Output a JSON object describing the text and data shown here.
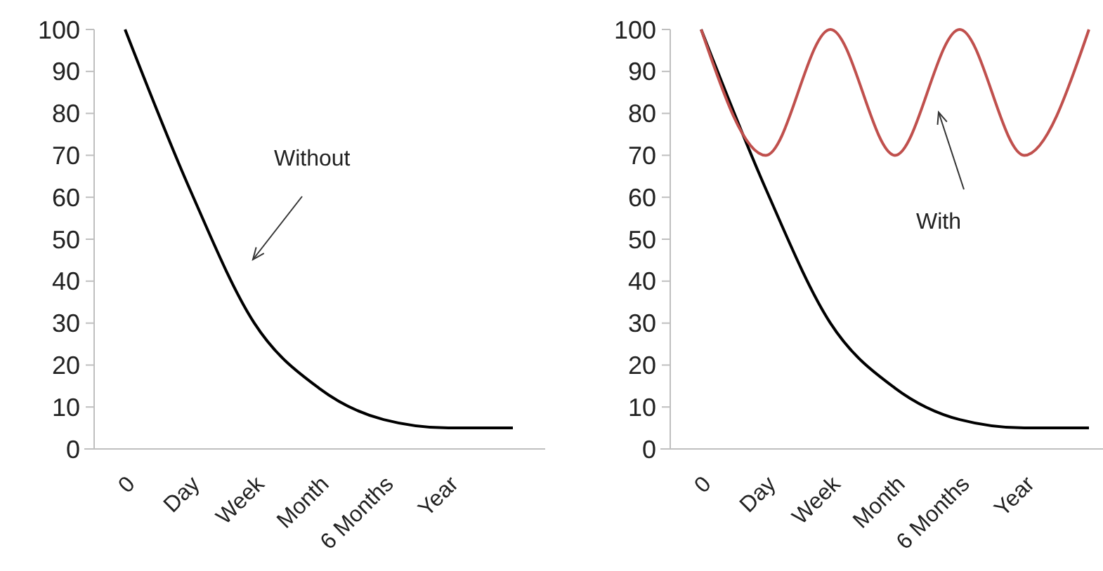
{
  "chart_data": [
    {
      "type": "line",
      "categories": [
        "0",
        "Day",
        "Week",
        "Month",
        "6 Months",
        "Year",
        null
      ],
      "ylim": [
        0,
        100
      ],
      "yticks": [
        0,
        10,
        20,
        30,
        40,
        50,
        60,
        70,
        80,
        90,
        100
      ],
      "grid": false,
      "marker": "none",
      "line_style": "solid",
      "annotations": [
        "Without"
      ],
      "series": [
        {
          "color": "#000000",
          "values": [
            100,
            62,
            30,
            14.5,
            7,
            5,
            5
          ]
        }
      ]
    },
    {
      "type": "line",
      "categories": [
        "0",
        "Day",
        "Week",
        "Month",
        "6 Months",
        "Year",
        null
      ],
      "ylim": [
        0,
        100
      ],
      "yticks": [
        0,
        10,
        20,
        30,
        40,
        50,
        60,
        70,
        80,
        90,
        100
      ],
      "grid": false,
      "marker": "none",
      "line_style": "solid",
      "annotations": [
        "With"
      ],
      "series": [
        {
          "color": "#000000",
          "values": [
            100,
            62,
            30,
            14.5,
            7,
            5,
            5
          ]
        },
        {
          "color": "#c0504d",
          "values": [
            100,
            70,
            100,
            70,
            100,
            70,
            100
          ]
        }
      ]
    }
  ]
}
